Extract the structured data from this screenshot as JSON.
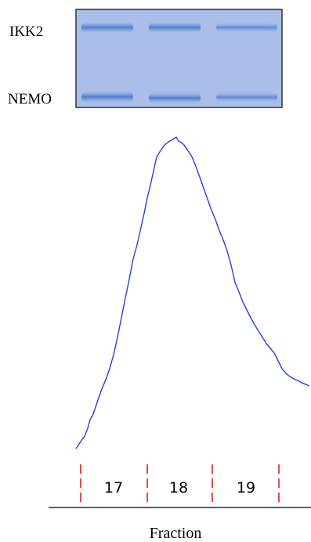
{
  "gel": {
    "labels": [
      "IKK2",
      "NEMO"
    ]
  },
  "fractions": {
    "labels": [
      17,
      18,
      19
    ],
    "title": "Fraction"
  }
}
